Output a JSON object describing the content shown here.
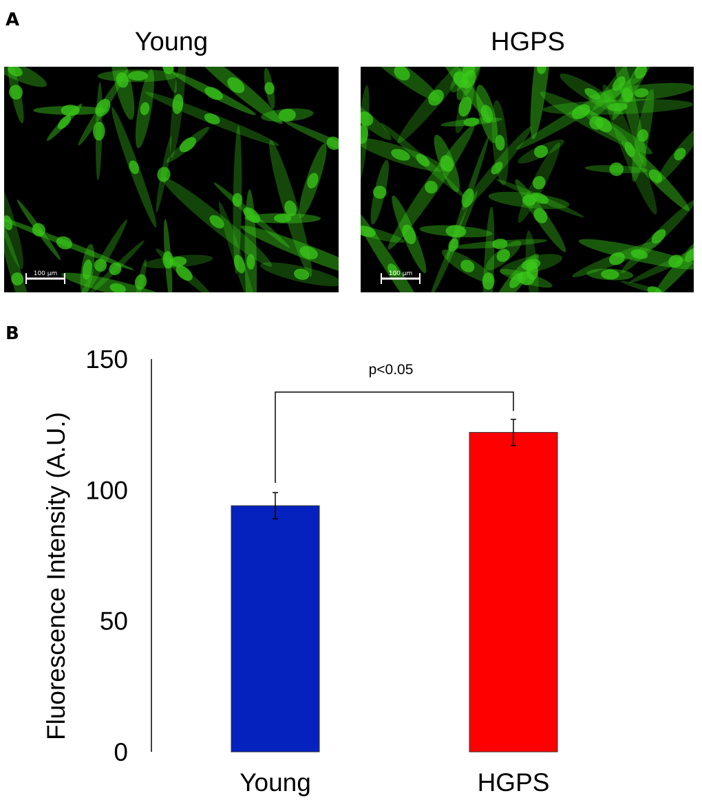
{
  "panels": {
    "a": {
      "letter": "A",
      "images": [
        {
          "title": "Young",
          "scale_bar": "100 µm",
          "fluorescence_color": "#39c81a"
        },
        {
          "title": "HGPS",
          "scale_bar": "100 µm",
          "fluorescence_color": "#39c81a"
        }
      ]
    },
    "b": {
      "letter": "B"
    }
  },
  "chart_data": {
    "type": "bar",
    "categories": [
      "Young",
      "HGPS"
    ],
    "values": [
      94,
      122
    ],
    "errors": [
      5,
      5
    ],
    "colors": [
      "#0522be",
      "#ff0000"
    ],
    "ylabel": "Fluorescence Intensity (A.U.)",
    "xlabel": "",
    "ylim": [
      0,
      150
    ],
    "yticks": [
      0,
      50,
      100,
      150
    ],
    "grid": false,
    "annotation": {
      "text": "p<0.05",
      "between": [
        "Young",
        "HGPS"
      ]
    }
  }
}
